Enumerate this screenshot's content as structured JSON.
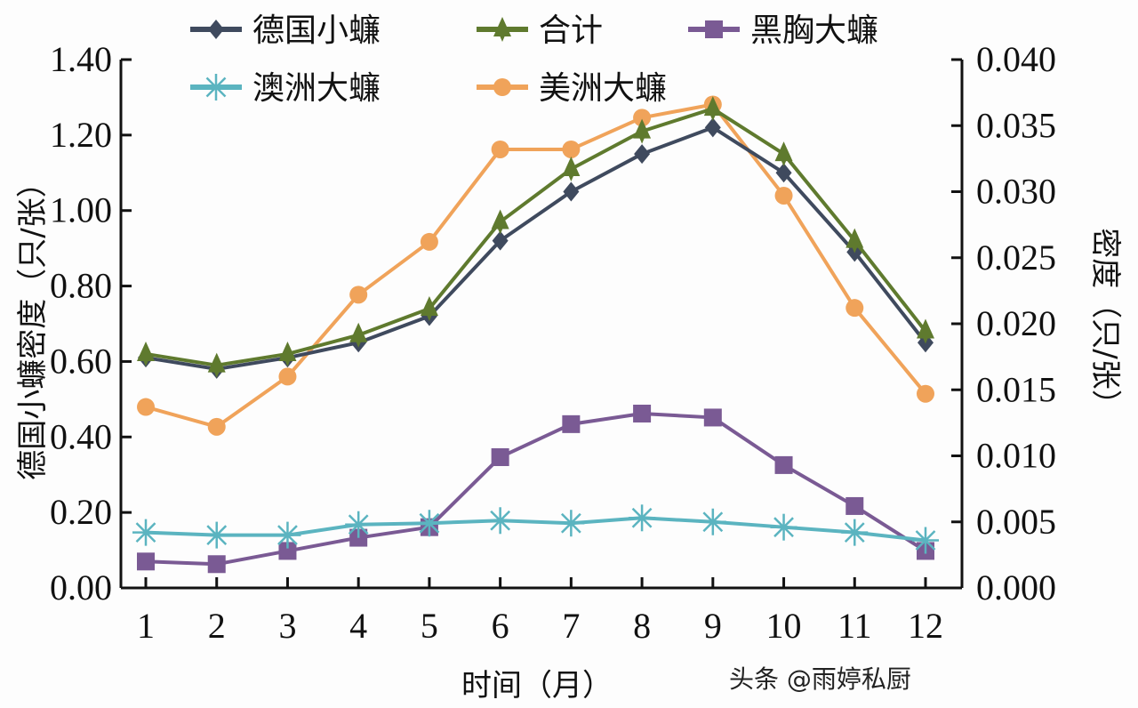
{
  "chart_data": {
    "type": "line",
    "title": "",
    "xlabel": "时间（月）",
    "ylabel_left": "德国小蠊密度（只/张）",
    "ylabel_right": "密度（只/张）",
    "x": [
      1,
      2,
      3,
      4,
      5,
      6,
      7,
      8,
      9,
      10,
      11,
      12
    ],
    "x_tick_labels": [
      "1",
      "2",
      "3",
      "4",
      "5",
      "6",
      "7",
      "8",
      "9",
      "10",
      "11",
      "12"
    ],
    "ylim_left": [
      0,
      1.4
    ],
    "ylim_right": [
      0,
      0.04
    ],
    "y_ticks_left": [
      "0.00",
      "0.20",
      "0.40",
      "0.60",
      "0.80",
      "1.00",
      "1.20",
      "1.40"
    ],
    "y_ticks_right": [
      "0.000",
      "0.005",
      "0.010",
      "0.015",
      "0.020",
      "0.025",
      "0.030",
      "0.035",
      "0.040"
    ],
    "grid": false,
    "legend_position": "top",
    "series": [
      {
        "name": "德国小蠊",
        "axis": "left",
        "marker": "diamond",
        "color": "#3f4a5e",
        "values": [
          0.61,
          0.58,
          0.61,
          0.65,
          0.72,
          0.92,
          1.05,
          1.15,
          1.22,
          1.1,
          0.89,
          0.65
        ]
      },
      {
        "name": "合计",
        "axis": "left",
        "marker": "triangle",
        "color": "#5f7a2e",
        "values": [
          0.62,
          0.59,
          0.62,
          0.67,
          0.74,
          0.97,
          1.11,
          1.21,
          1.27,
          1.15,
          0.92,
          0.68
        ]
      },
      {
        "name": "黑胸大蠊",
        "axis": "right",
        "marker": "square",
        "color": "#7a5a94",
        "values": [
          0.002,
          0.0018,
          0.0028,
          0.0038,
          0.0046,
          0.0099,
          0.0124,
          0.0132,
          0.0129,
          0.0093,
          0.0062,
          0.0028
        ]
      },
      {
        "name": "澳洲大蠊",
        "axis": "right",
        "marker": "asterisk",
        "color": "#5bb4c0",
        "values": [
          0.0042,
          0.004,
          0.004,
          0.0048,
          0.0049,
          0.0051,
          0.0049,
          0.0053,
          0.005,
          0.0046,
          0.0042,
          0.0036
        ]
      },
      {
        "name": "美洲大蠊",
        "axis": "right",
        "marker": "circle",
        "color": "#f0a35a",
        "values": [
          0.0137,
          0.0122,
          0.016,
          0.0222,
          0.0262,
          0.0332,
          0.0332,
          0.0356,
          0.0366,
          0.0297,
          0.0212,
          0.0147
        ]
      }
    ]
  },
  "legend": {
    "items": [
      "德国小蠊",
      "合计",
      "黑胸大蠊",
      "澳洲大蠊",
      "美洲大蠊"
    ]
  },
  "watermark": "头条 @雨婷私厨"
}
